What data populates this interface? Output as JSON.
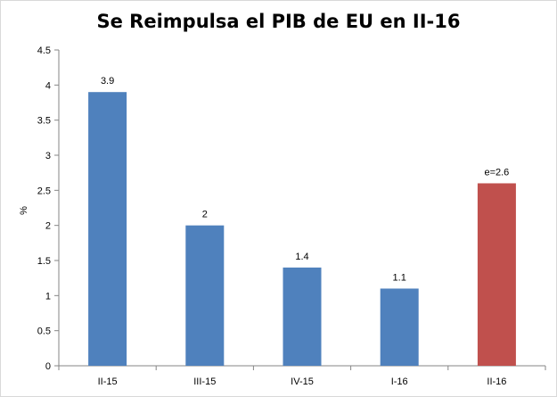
{
  "chart_data": {
    "type": "bar",
    "title": "Se Reimpulsa el PIB de EU en II-16",
    "xlabel": "",
    "ylabel": "%",
    "ylim": [
      0,
      4.5
    ],
    "yticks": [
      "0",
      "0.5",
      "1",
      "1.5",
      "2",
      "2.5",
      "3",
      "3.5",
      "4",
      "4.5"
    ],
    "grid": false,
    "legend": "none",
    "categories": [
      "II-15",
      "III-15",
      "IV-15",
      "I-16",
      "II-16"
    ],
    "values": [
      3.9,
      2,
      1.4,
      1.1,
      2.6
    ],
    "data_labels": [
      "3.9",
      "2",
      "1.4",
      "1.1",
      "e=2.6"
    ],
    "colors": [
      "#4f81bd",
      "#4f81bd",
      "#4f81bd",
      "#4f81bd",
      "#c0504d"
    ]
  }
}
